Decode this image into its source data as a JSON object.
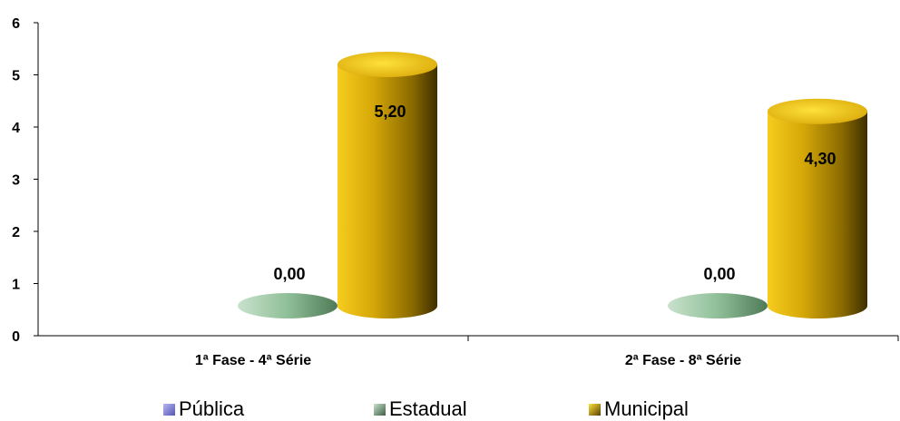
{
  "chart_data": {
    "type": "bar",
    "categories": [
      "1ª Fase - 4ª Série",
      "2ª Fase - 8ª Série"
    ],
    "series": [
      {
        "name": "Pública",
        "values": [
          null,
          null
        ],
        "color": "#7b7bd6"
      },
      {
        "name": "Estadual",
        "values": [
          0.0,
          0.0
        ],
        "color": "#8fbf98",
        "labels": [
          "0,00",
          "0,00"
        ]
      },
      {
        "name": "Municipal",
        "values": [
          5.2,
          4.3
        ],
        "color": "#e2b410",
        "labels": [
          "5,20",
          "4,30"
        ]
      }
    ],
    "ylim": [
      0,
      6
    ],
    "yticks": [
      "0",
      "1",
      "2",
      "3",
      "4",
      "5",
      "6"
    ],
    "xlabel": "",
    "ylabel": "",
    "title": "",
    "legend_position": "bottom"
  }
}
